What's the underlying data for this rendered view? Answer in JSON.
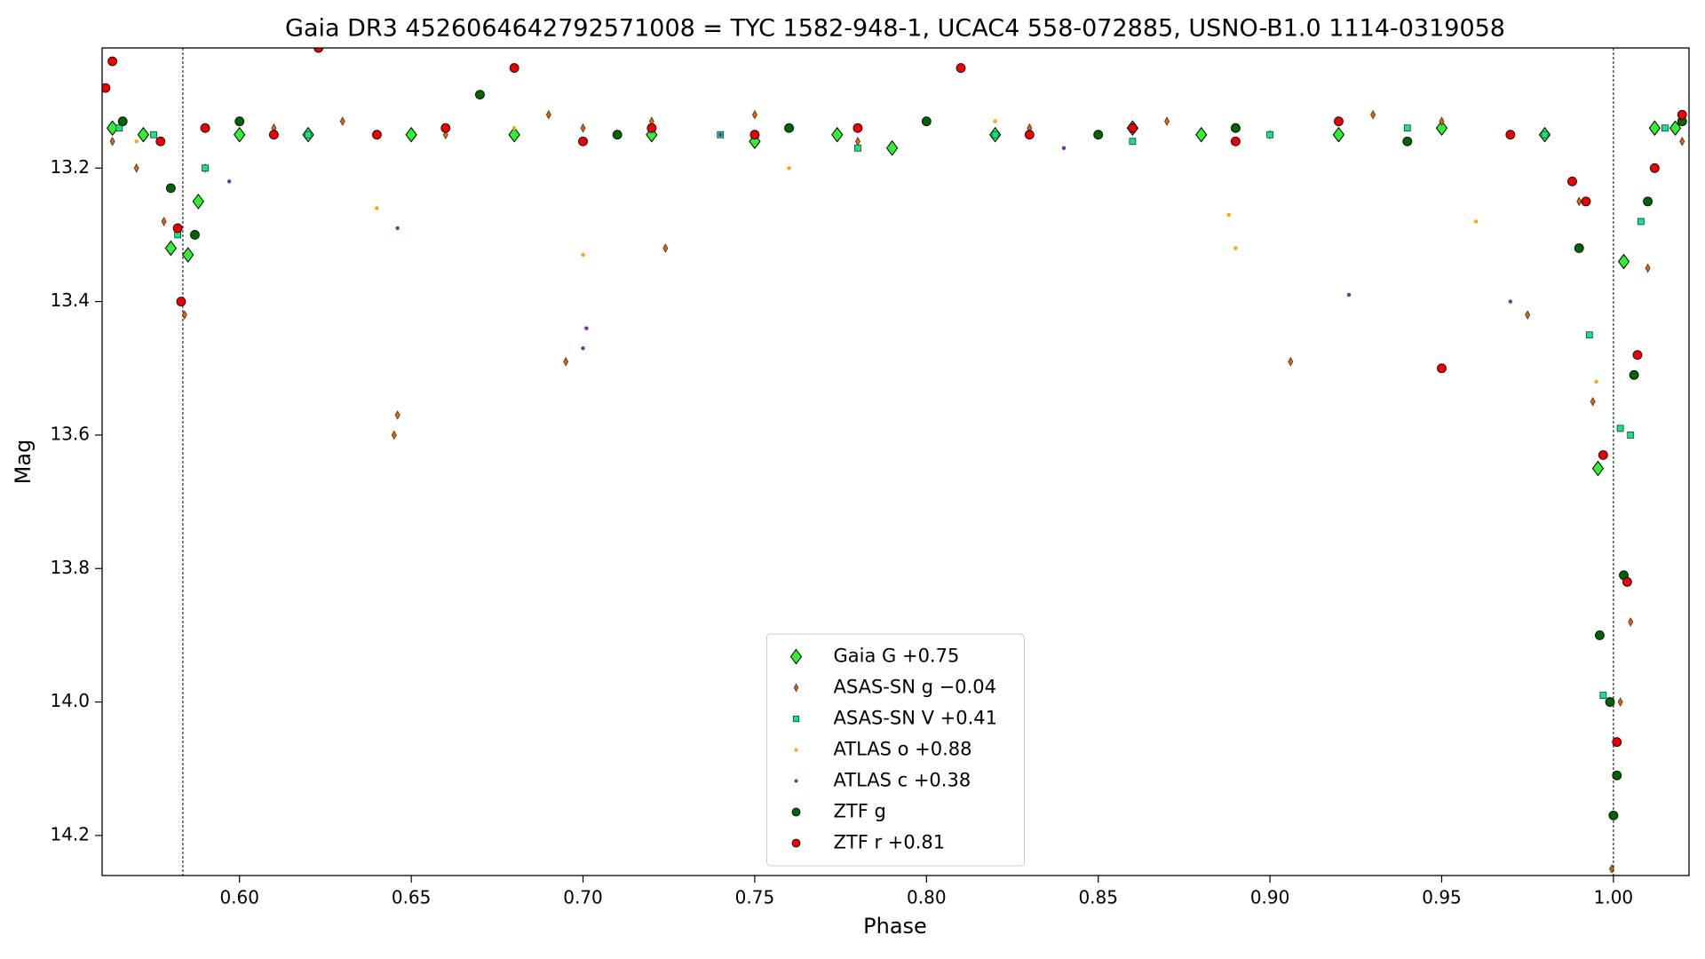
{
  "chart_data": {
    "type": "scatter",
    "title": "Gaia DR3 4526064642792571008 = TYC 1582-948-1, UCAC4 558-072885, USNO-B1.0 1114-0319058",
    "x_label": "Phase",
    "y_label": "Mag",
    "xlim": [
      0.56,
      1.022
    ],
    "ylim": [
      13.02,
      14.26
    ],
    "y_inverted": true,
    "xticks": [
      {
        "value": 0.6,
        "label": "0.60"
      },
      0.65,
      {
        "value": 0.7,
        "label": "0.70"
      },
      0.75,
      {
        "value": 0.8,
        "label": "0.80"
      },
      0.85,
      {
        "value": 0.9,
        "label": "0.90"
      },
      0.95,
      {
        "value": 1.0,
        "label": "1.00"
      }
    ],
    "yticks": [
      13.2,
      13.4,
      13.6,
      13.8,
      {
        "value": 14.0,
        "label": "14.0"
      },
      14.2
    ],
    "vlines": [
      0.5835,
      1.0
    ],
    "legend": "lower center",
    "series": [
      {
        "name": "Gaia G +0.75",
        "color": "#33ee33",
        "marker": "diamond",
        "x": [
          0.563,
          0.572,
          0.58,
          0.585,
          0.588,
          0.6,
          0.62,
          0.65,
          0.68,
          0.72,
          0.75,
          0.774,
          0.79,
          0.82,
          0.86,
          0.88,
          0.92,
          0.95,
          0.98,
          0.9955,
          1.003,
          1.012,
          1.018
        ],
        "values": [
          13.14,
          13.15,
          13.32,
          13.33,
          13.25,
          13.15,
          13.15,
          13.15,
          13.15,
          13.15,
          13.16,
          13.15,
          13.17,
          13.15,
          13.14,
          13.15,
          13.15,
          13.14,
          13.15,
          13.65,
          13.34,
          13.14,
          13.14
        ]
      },
      {
        "name": "ASAS-SN g −0.04",
        "color": "#d2691e",
        "marker": "thin_diamond",
        "x": [
          0.563,
          0.57,
          0.578,
          0.584,
          0.59,
          0.61,
          0.63,
          0.645,
          0.646,
          0.66,
          0.69,
          0.695,
          0.7,
          0.72,
          0.724,
          0.75,
          0.78,
          0.8,
          0.83,
          0.85,
          0.87,
          0.9,
          0.906,
          0.93,
          0.95,
          0.975,
          0.99,
          0.994,
          0.996,
          0.9995,
          1.002,
          1.005,
          1.01,
          1.02
        ],
        "values": [
          13.16,
          13.2,
          13.28,
          13.42,
          13.2,
          13.14,
          13.13,
          13.6,
          13.57,
          13.15,
          13.12,
          13.49,
          13.14,
          13.13,
          13.32,
          13.12,
          13.16,
          13.13,
          13.14,
          13.15,
          13.13,
          13.15,
          13.49,
          13.12,
          13.13,
          13.42,
          13.25,
          13.55,
          13.9,
          14.25,
          14.0,
          13.88,
          13.35,
          13.16
        ]
      },
      {
        "name": "ASAS-SN V +0.41",
        "color": "#22dd88",
        "marker": "square",
        "x": [
          0.565,
          0.575,
          0.582,
          0.59,
          0.62,
          0.66,
          0.7,
          0.74,
          0.78,
          0.82,
          0.86,
          0.9,
          0.94,
          0.98,
          0.993,
          0.997,
          1.002,
          1.005,
          1.008,
          1.015
        ],
        "values": [
          13.14,
          13.15,
          13.3,
          13.2,
          13.15,
          13.14,
          13.16,
          13.15,
          13.17,
          13.15,
          13.16,
          13.15,
          13.14,
          13.15,
          13.45,
          13.99,
          13.59,
          13.6,
          13.28,
          13.14
        ]
      },
      {
        "name": "ATLAS o +0.88",
        "color": "#ffa500",
        "marker": "dot",
        "x": [
          0.57,
          0.64,
          0.68,
          0.7,
          0.76,
          0.82,
          0.888,
          0.89,
          0.96,
          0.995
        ],
        "values": [
          13.16,
          13.26,
          13.14,
          13.33,
          13.2,
          13.13,
          13.27,
          13.32,
          13.28,
          13.52
        ]
      },
      {
        "name": "ATLAS c +0.38",
        "color": "#7b2d9b",
        "marker": "dot",
        "x": [
          0.597,
          0.646,
          0.7,
          0.701,
          0.74,
          0.84,
          0.923,
          0.97
        ],
        "values": [
          13.22,
          13.29,
          13.47,
          13.44,
          13.15,
          13.17,
          13.39,
          13.4
        ]
      },
      {
        "name": "ZTF g",
        "color": "#006400",
        "marker": "circle",
        "x": [
          0.566,
          0.58,
          0.587,
          0.6,
          0.67,
          0.71,
          0.76,
          0.8,
          0.85,
          0.89,
          0.94,
          0.99,
          0.996,
          0.999,
          1.0,
          1.001,
          1.003,
          1.006,
          1.01,
          1.02
        ],
        "values": [
          13.13,
          13.23,
          13.3,
          13.13,
          13.09,
          13.15,
          13.14,
          13.13,
          13.15,
          13.14,
          13.16,
          13.32,
          13.9,
          14.0,
          14.17,
          14.11,
          13.81,
          13.51,
          13.25,
          13.13
        ]
      },
      {
        "name": "ZTF r +0.81",
        "color": "#ee0000",
        "marker": "circle",
        "x": [
          0.561,
          0.563,
          0.577,
          0.582,
          0.583,
          0.59,
          0.61,
          0.623,
          0.64,
          0.66,
          0.68,
          0.7,
          0.72,
          0.75,
          0.78,
          0.81,
          0.83,
          0.86,
          0.89,
          0.92,
          0.95,
          0.97,
          0.988,
          0.992,
          0.997,
          1.001,
          1.004,
          1.007,
          1.012,
          1.02
        ],
        "values": [
          13.08,
          13.04,
          13.16,
          13.29,
          13.4,
          13.14,
          13.15,
          13.02,
          13.15,
          13.14,
          13.05,
          13.16,
          13.14,
          13.15,
          13.14,
          13.05,
          13.15,
          13.14,
          13.16,
          13.13,
          13.5,
          13.15,
          13.22,
          13.25,
          13.63,
          14.06,
          13.82,
          13.48,
          13.2,
          13.12
        ]
      }
    ]
  }
}
